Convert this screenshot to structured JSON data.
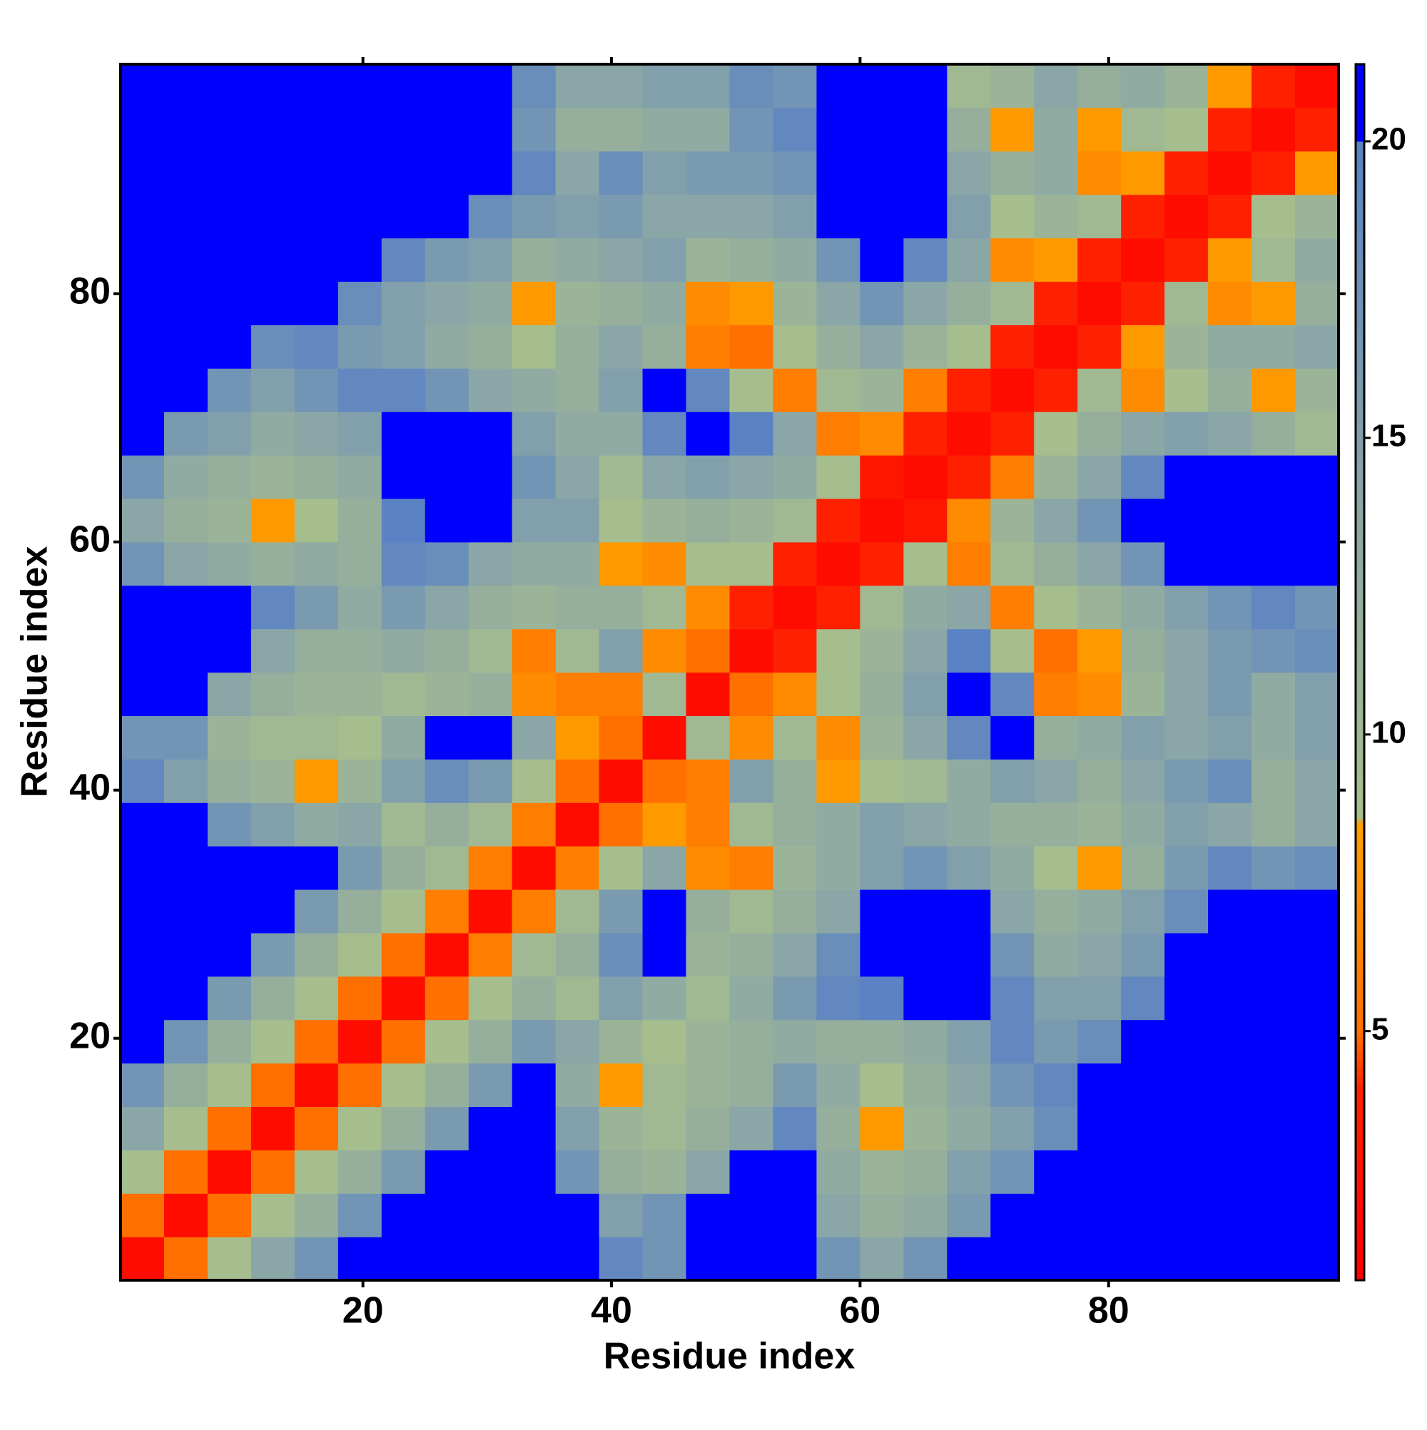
{
  "chart_data": {
    "type": "heatmap",
    "xlabel": "Residue index",
    "ylabel": "Residue index",
    "x": [
      2.25,
      5.75,
      9.25,
      12.75,
      16.25,
      19.75,
      23.25,
      26.75,
      30.25,
      33.75,
      37.25,
      40.75,
      44.25,
      47.75,
      51.25,
      54.75,
      58.25,
      61.75,
      65.25,
      68.75,
      72.25,
      75.75,
      79.25,
      82.75,
      86.25,
      89.75,
      93.25,
      96.75
    ],
    "y": [
      2.25,
      5.75,
      9.25,
      12.75,
      16.25,
      19.75,
      23.25,
      26.75,
      30.25,
      33.75,
      37.25,
      40.75,
      44.25,
      47.75,
      51.25,
      54.75,
      58.25,
      61.75,
      65.25,
      68.75,
      72.25,
      75.75,
      79.25,
      82.75,
      86.25,
      89.75,
      93.25,
      96.75
    ],
    "xlim": [
      0.5,
      98.5
    ],
    "ylim": [
      0.5,
      98.5
    ],
    "xticks": [
      20,
      40,
      60,
      80
    ],
    "yticks": [
      20,
      40,
      60,
      80
    ],
    "clim": [
      0.8,
      21.3
    ],
    "cticks": [
      5,
      10,
      15,
      20
    ],
    "colorscale": [
      [
        0.8,
        "#ff0000"
      ],
      [
        4,
        "#ff2000"
      ],
      [
        5,
        "#ff7000"
      ],
      [
        8.5,
        "#ffa000"
      ],
      [
        8.6,
        "#a8bf8c"
      ],
      [
        14,
        "#8aa6a6"
      ],
      [
        20,
        "#5a82c4"
      ],
      [
        20.01,
        "#0000ff"
      ],
      [
        21.3,
        "#0000ff"
      ]
    ],
    "z": [
      [
        2,
        5,
        9,
        14,
        17,
        21,
        21,
        21,
        21,
        21,
        21,
        19,
        17,
        21,
        21,
        21,
        17,
        14,
        17,
        21,
        21,
        21,
        21,
        21,
        21,
        21,
        21,
        21
      ],
      [
        5,
        2,
        5,
        9,
        12,
        17,
        21,
        21,
        21,
        21,
        21,
        15,
        17,
        21,
        21,
        21,
        14,
        12,
        13,
        16,
        21,
        21,
        21,
        21,
        21,
        21,
        21,
        21
      ],
      [
        9,
        5,
        2,
        5,
        9,
        12,
        16,
        21,
        21,
        21,
        17,
        12,
        11,
        14,
        21,
        21,
        13,
        11,
        12,
        15,
        17,
        21,
        21,
        21,
        21,
        21,
        21,
        21
      ],
      [
        14,
        9,
        5,
        2,
        5,
        9,
        12,
        16,
        21,
        21,
        15,
        11,
        10,
        12,
        14,
        19,
        12,
        8,
        11,
        13,
        15,
        18,
        21,
        21,
        21,
        21,
        21,
        21
      ],
      [
        17,
        12,
        9,
        5,
        2,
        5,
        9,
        12,
        16,
        21,
        13,
        8,
        10,
        11,
        12,
        16,
        13,
        9,
        12,
        14,
        17,
        19,
        21,
        21,
        21,
        21,
        21,
        21
      ],
      [
        21,
        17,
        12,
        9,
        5,
        2,
        5,
        9,
        12,
        16,
        14,
        11,
        9,
        11,
        12,
        13,
        12,
        12,
        13,
        15,
        19,
        16,
        18,
        21,
        21,
        21,
        21,
        21
      ],
      [
        21,
        21,
        16,
        12,
        9,
        5,
        2,
        5,
        9,
        12,
        10,
        15,
        13,
        10,
        13,
        16,
        19,
        20,
        21,
        21,
        19,
        15,
        15,
        19,
        21,
        21,
        21,
        21
      ],
      [
        21,
        21,
        21,
        16,
        12,
        9,
        5,
        2,
        6,
        10,
        12,
        18,
        21,
        11,
        12,
        14,
        18,
        21,
        21,
        21,
        17,
        13,
        14,
        16,
        21,
        21,
        21,
        21
      ],
      [
        21,
        21,
        21,
        21,
        16,
        12,
        9,
        6,
        2,
        6,
        10,
        16,
        21,
        12,
        10,
        12,
        14,
        21,
        21,
        21,
        14,
        12,
        13,
        15,
        18,
        21,
        21,
        21
      ],
      [
        21,
        21,
        21,
        21,
        21,
        16,
        12,
        10,
        6,
        2,
        6,
        9,
        14,
        7,
        6,
        11,
        13,
        15,
        17,
        15,
        13,
        9,
        8,
        12,
        16,
        19,
        17,
        18
      ],
      [
        21,
        21,
        17,
        15,
        13,
        14,
        10,
        12,
        10,
        6,
        2,
        5,
        8,
        6,
        10,
        12,
        13,
        15,
        14,
        13,
        12,
        12,
        11,
        13,
        15,
        14,
        12,
        14
      ],
      [
        19,
        15,
        12,
        11,
        8,
        11,
        15,
        18,
        16,
        9,
        5,
        2,
        5,
        6,
        15,
        12,
        8,
        9,
        10,
        13,
        15,
        14,
        12,
        14,
        16,
        18,
        12,
        14
      ],
      [
        17,
        17,
        11,
        10,
        10,
        9,
        13,
        21,
        21,
        14,
        8,
        5,
        2,
        10,
        7,
        10,
        7,
        11,
        14,
        19,
        21,
        12,
        13,
        15,
        14,
        15,
        13,
        15
      ],
      [
        21,
        21,
        14,
        12,
        11,
        11,
        10,
        11,
        12,
        7,
        6,
        6,
        10,
        2,
        5,
        7,
        9,
        12,
        15,
        21,
        19,
        6,
        7,
        11,
        14,
        16,
        13,
        15
      ],
      [
        21,
        21,
        21,
        14,
        12,
        12,
        13,
        12,
        10,
        6,
        10,
        15,
        7,
        5,
        2,
        4,
        9,
        11,
        14,
        20,
        9,
        5,
        8,
        12,
        14,
        16,
        17,
        18
      ],
      [
        21,
        21,
        21,
        19,
        16,
        13,
        16,
        14,
        12,
        11,
        12,
        12,
        10,
        7,
        4,
        2,
        4,
        10,
        13,
        14,
        6,
        9,
        11,
        13,
        15,
        17,
        19,
        17
      ],
      [
        17,
        14,
        13,
        12,
        13,
        12,
        19,
        18,
        14,
        13,
        13,
        8,
        7,
        9,
        9,
        4,
        2,
        4,
        9,
        6,
        10,
        12,
        14,
        17,
        21,
        21,
        21,
        21
      ],
      [
        14,
        12,
        11,
        8,
        9,
        12,
        20,
        21,
        21,
        15,
        15,
        9,
        11,
        12,
        11,
        10,
        4,
        2,
        3,
        7,
        11,
        14,
        17,
        21,
        21,
        21,
        21,
        21
      ],
      [
        17,
        13,
        12,
        11,
        12,
        13,
        21,
        21,
        21,
        17,
        14,
        10,
        14,
        15,
        14,
        13,
        9,
        3,
        2,
        4,
        6,
        11,
        14,
        19,
        21,
        21,
        21,
        21
      ],
      [
        21,
        16,
        15,
        13,
        14,
        15,
        21,
        21,
        21,
        15,
        13,
        13,
        19,
        21,
        20,
        14,
        6,
        7,
        4,
        2,
        4,
        9,
        12,
        14,
        15,
        14,
        12,
        10
      ],
      [
        21,
        21,
        17,
        15,
        17,
        19,
        19,
        17,
        14,
        13,
        12,
        15,
        21,
        19,
        9,
        6,
        10,
        11,
        6,
        4,
        2,
        4,
        10,
        7,
        9,
        12,
        8,
        11
      ],
      [
        21,
        21,
        21,
        18,
        19,
        16,
        15,
        13,
        12,
        9,
        12,
        14,
        12,
        6,
        5,
        9,
        12,
        14,
        11,
        9,
        4,
        2,
        4,
        8,
        11,
        13,
        13,
        14
      ],
      [
        21,
        21,
        21,
        21,
        21,
        18,
        15,
        14,
        13,
        8,
        11,
        12,
        13,
        7,
        8,
        11,
        14,
        17,
        14,
        12,
        10,
        4,
        2,
        4,
        10,
        7,
        8,
        12
      ],
      [
        21,
        21,
        21,
        21,
        21,
        21,
        19,
        16,
        15,
        12,
        13,
        14,
        15,
        11,
        12,
        13,
        17,
        21,
        19,
        14,
        7,
        8,
        4,
        2,
        4,
        8,
        10,
        13
      ],
      [
        21,
        21,
        21,
        21,
        21,
        21,
        21,
        21,
        18,
        16,
        15,
        16,
        14,
        14,
        14,
        15,
        21,
        21,
        21,
        15,
        9,
        11,
        10,
        4,
        2,
        4,
        9,
        11
      ],
      [
        21,
        21,
        21,
        21,
        21,
        21,
        21,
        21,
        21,
        19,
        14,
        18,
        15,
        16,
        16,
        17,
        21,
        21,
        21,
        14,
        12,
        13,
        7,
        8,
        4,
        2,
        4,
        8
      ],
      [
        21,
        21,
        21,
        21,
        21,
        21,
        21,
        21,
        21,
        17,
        12,
        12,
        13,
        13,
        17,
        19,
        21,
        21,
        21,
        12,
        8,
        13,
        8,
        10,
        9,
        4,
        2,
        4
      ],
      [
        21,
        21,
        21,
        21,
        21,
        21,
        21,
        21,
        21,
        18,
        14,
        14,
        15,
        15,
        18,
        17,
        21,
        21,
        21,
        10,
        11,
        14,
        12,
        13,
        11,
        8,
        4,
        2
      ]
    ]
  }
}
